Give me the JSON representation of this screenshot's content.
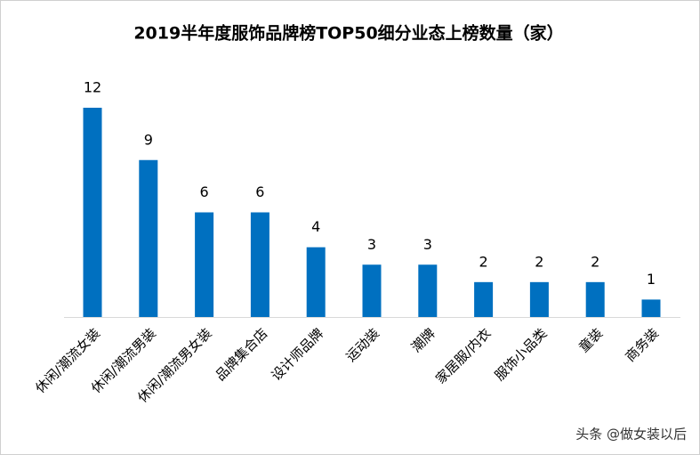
{
  "chart_data": {
    "type": "bar",
    "title": "2019半年度服饰品牌榜TOP50细分业态上榜数量（家）",
    "categories": [
      "休闲/潮流女装",
      "休闲/潮流男装",
      "休闲/潮流男女装",
      "品牌集合店",
      "设计师品牌",
      "运动装",
      "潮牌",
      "家居服/内衣",
      "服饰小品类",
      "童装",
      "商务装"
    ],
    "values": [
      12,
      9,
      6,
      6,
      4,
      3,
      3,
      2,
      2,
      2,
      1
    ],
    "color": "#0070c0"
  },
  "watermark": "头条 @做女装以后"
}
